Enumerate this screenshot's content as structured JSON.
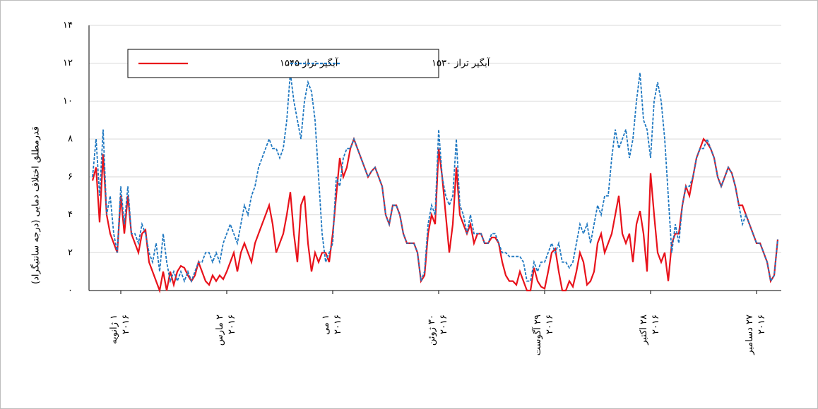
{
  "chart_data": {
    "type": "line",
    "y_label": "قدرمطلق اختلاف دمایی (درجه سانتیگراد)",
    "x": [
      2,
      4,
      6,
      8,
      10,
      12,
      14,
      16,
      18,
      20,
      22,
      24,
      26,
      28,
      30,
      32,
      34,
      36,
      38,
      40,
      42,
      44,
      46,
      48,
      50,
      52,
      54,
      56,
      58,
      60,
      62,
      64,
      66,
      68,
      70,
      72,
      74,
      76,
      78,
      80,
      82,
      84,
      86,
      88,
      90,
      92,
      94,
      96,
      98,
      100,
      102,
      104,
      106,
      108,
      110,
      112,
      114,
      116,
      118,
      120,
      122,
      124,
      126,
      128,
      130,
      132,
      134,
      136,
      138,
      140,
      142,
      144,
      146,
      148,
      150,
      152,
      154,
      156,
      158,
      160,
      162,
      164,
      166,
      168,
      170,
      172,
      174,
      176,
      178,
      180,
      182,
      184,
      186,
      188,
      190,
      192,
      194,
      196,
      198,
      200,
      202,
      204,
      206,
      208,
      210,
      212,
      214,
      216,
      218,
      220,
      222,
      224,
      226,
      228,
      230,
      232,
      234,
      236,
      238,
      240,
      242,
      244,
      246,
      248,
      250,
      252,
      254,
      256,
      258,
      260,
      262,
      264,
      266,
      268,
      270,
      272,
      274,
      276,
      278,
      280,
      282,
      284,
      286,
      288,
      290,
      292,
      294,
      296,
      298,
      300,
      302,
      304,
      306,
      308,
      310,
      312,
      314,
      316,
      318,
      320,
      322,
      324,
      326,
      328,
      330,
      332,
      334,
      336,
      338,
      340,
      342,
      344,
      346,
      348,
      350,
      352,
      354,
      356,
      358,
      360,
      362,
      364,
      366,
      368,
      370,
      372,
      374,
      376,
      378,
      380,
      382,
      384,
      386,
      388,
      390
    ],
    "series": [
      {
        "name": "آبگیر تراز ۱۵۴۵",
        "color": "#e8121b",
        "dash": false,
        "values": [
          5.8,
          6.5,
          3.6,
          7.2,
          4,
          3,
          2.5,
          2,
          5,
          3,
          5,
          3,
          2.5,
          2,
          3,
          3.2,
          1.5,
          1,
          0.5,
          0,
          1,
          0,
          1,
          0.3,
          1,
          1.3,
          1.2,
          0.8,
          0.5,
          0.8,
          1.5,
          1,
          0.5,
          0.3,
          0.8,
          0.5,
          0.8,
          0.6,
          1,
          1.5,
          2,
          1,
          2,
          2.5,
          2,
          1.5,
          2.5,
          3,
          3.5,
          4,
          4.5,
          3.5,
          2,
          2.5,
          3,
          4,
          5.2,
          3,
          1.5,
          4.5,
          5,
          2.5,
          1,
          2,
          1.5,
          2,
          2,
          1.5,
          3,
          5,
          7,
          6,
          6.5,
          7.5,
          8,
          7.5,
          7,
          6.5,
          6,
          6.3,
          6.5,
          6,
          5.5,
          4,
          3.5,
          4.5,
          4.5,
          4,
          3,
          2.5,
          2.5,
          2.5,
          2,
          0.5,
          0.8,
          3,
          4,
          3.5,
          7.5,
          6,
          4,
          2,
          3.5,
          6.5,
          4,
          3.5,
          3,
          3.5,
          2.5,
          3,
          3,
          2.5,
          2.5,
          2.8,
          2.8,
          2.5,
          1.5,
          0.8,
          0.5,
          0.5,
          0.3,
          1,
          0.5,
          0,
          0,
          1.2,
          0.5,
          0.2,
          0.1,
          1,
          2,
          2.2,
          1,
          0,
          0,
          0.5,
          0.2,
          1,
          2,
          1.5,
          0.3,
          0.5,
          1,
          2.5,
          3,
          2,
          2.5,
          3,
          4,
          5,
          3,
          2.5,
          3,
          1.5,
          3.5,
          4.2,
          3,
          1,
          6.2,
          4,
          2,
          1.5,
          2,
          0.5,
          2.5,
          3,
          3,
          4.5,
          5.5,
          5,
          6,
          7,
          7.5,
          8,
          7.8,
          7.5,
          7,
          6,
          5.5,
          6,
          6.5,
          6.2,
          5.5,
          4.5,
          4.5,
          4,
          3.5,
          3,
          2.5,
          2.5,
          2,
          1.5,
          0.5,
          0.8,
          2.7
        ]
      },
      {
        "name": "آبگیر تراز ۱۵۳۰",
        "color": "#1f78c1",
        "dash": true,
        "values": [
          6,
          8,
          5,
          8.5,
          4,
          5,
          3,
          2,
          5.5,
          3.5,
          5.5,
          3,
          3,
          2.5,
          3.5,
          3,
          2,
          1.5,
          2.5,
          1,
          3,
          1.5,
          0.5,
          1,
          0.5,
          1,
          0.5,
          1,
          0.5,
          1,
          1.5,
          1.5,
          2,
          2,
          1.5,
          2,
          1.5,
          2.5,
          3,
          3.5,
          3,
          2.5,
          3.5,
          4.5,
          4,
          5,
          5.5,
          6.5,
          7,
          7.5,
          8,
          7.5,
          7.5,
          7,
          7.5,
          9,
          11.5,
          10,
          9,
          8,
          10,
          11,
          10.5,
          9,
          6,
          3,
          1.5,
          2,
          2.5,
          6,
          5.5,
          7,
          7.5,
          7.5,
          8,
          7.5,
          7,
          6.5,
          6,
          6.3,
          6.5,
          6,
          5.5,
          4,
          3.5,
          4.5,
          4.5,
          4,
          3,
          2.5,
          2.5,
          2.5,
          2,
          0.5,
          1,
          3.5,
          4.5,
          4,
          8.5,
          6,
          5,
          4.5,
          5,
          8,
          4.5,
          4,
          3,
          4,
          3,
          3,
          3,
          2.5,
          2.5,
          3,
          3,
          2.5,
          2,
          2,
          1.8,
          1.8,
          1.8,
          1.8,
          1.5,
          0.5,
          0.5,
          1.5,
          1,
          1.5,
          1.5,
          2,
          2.5,
          2,
          2.5,
          1.5,
          1.5,
          1.2,
          1.5,
          2.5,
          3.5,
          3,
          3.5,
          2.5,
          3.5,
          4.5,
          4,
          5,
          5,
          7,
          8.5,
          7.5,
          8,
          8.5,
          7,
          8,
          10,
          11.5,
          9,
          8.5,
          7,
          10,
          11,
          10,
          8,
          5,
          2,
          3.5,
          2.5,
          4.5,
          5.5,
          5.5,
          6,
          7,
          7.5,
          7.5,
          8,
          7.5,
          7,
          6,
          5.5,
          6,
          6.5,
          6.2,
          5.5,
          4.5,
          3.5,
          4,
          3.5,
          3,
          2.5,
          2.5,
          2,
          1.5,
          0.5,
          0.8,
          2.7
        ]
      }
    ],
    "xlim": [
      0,
      392
    ],
    "xticks": [
      {
        "value": 18,
        "label": "۱ ژانویه\n۲۰۱۶"
      },
      {
        "value": 78,
        "label": "۲ مارس\n۲۰۱۶"
      },
      {
        "value": 138,
        "label": "۱ می\n۲۰۱۶"
      },
      {
        "value": 198,
        "label": "۳۰ ژوئن\n۲۰۱۶"
      },
      {
        "value": 258,
        "label": "۲۹ آگوست\n۲۰۱۶"
      },
      {
        "value": 318,
        "label": "۲۸ اکتبر\n۲۰۱۶"
      },
      {
        "value": 378,
        "label": "۲۷ دسامبر\n۲۰۱۶"
      }
    ],
    "ylim": [
      0,
      14
    ],
    "yticks": [
      {
        "value": 0,
        "label": "۰"
      },
      {
        "value": 2,
        "label": "۲"
      },
      {
        "value": 4,
        "label": "۴"
      },
      {
        "value": 6,
        "label": "۶"
      },
      {
        "value": 8,
        "label": "۸"
      },
      {
        "value": 10,
        "label": "۱۰"
      },
      {
        "value": 12,
        "label": "۱۲"
      },
      {
        "value": 14,
        "label": "۱۴"
      }
    ],
    "grid": true
  }
}
